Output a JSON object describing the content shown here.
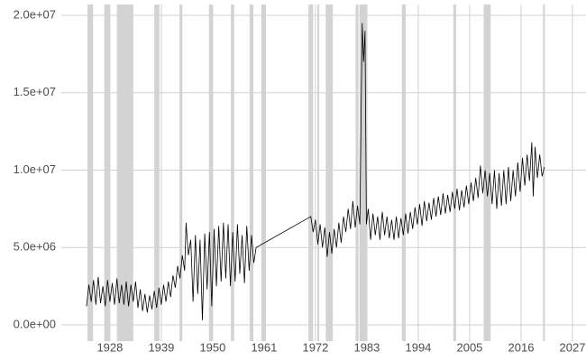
{
  "chart_data": {
    "type": "line",
    "xlim": [
      1917.6,
      2029.9
    ],
    "ylim": [
      -1050000,
      20700000
    ],
    "xticks": [
      1928,
      1939,
      1950,
      1961,
      1972,
      1983,
      1994,
      2005,
      2016,
      2027
    ],
    "yticks": [
      {
        "value": 0,
        "label": "0.0e+00"
      },
      {
        "value": 5000000,
        "label": "5.0e+06"
      },
      {
        "value": 10000000,
        "label": "1.0e+07"
      },
      {
        "value": 15000000,
        "label": "1.5e+07"
      },
      {
        "value": 20000000,
        "label": "2.0e+07"
      }
    ],
    "grid": true,
    "color": "#000000",
    "shade_color": "#d3d3d3",
    "shaded_ranges": [
      [
        1923.2,
        1924.4
      ],
      [
        1926.8,
        1927.9
      ],
      [
        1929.5,
        1933.0
      ],
      [
        1937.5,
        1938.6
      ],
      [
        1942.9,
        1943.5
      ],
      [
        1949.2,
        1950.0
      ],
      [
        1953.9,
        1954.6
      ],
      [
        1957.9,
        1958.7
      ],
      [
        1960.4,
        1961.4
      ],
      [
        1970.5,
        1971.5
      ],
      [
        1972.4,
        1972.8
      ],
      [
        1974.2,
        1975.7
      ],
      [
        1980.6,
        1981.2
      ],
      [
        1981.4,
        1983.0
      ],
      [
        1990.5,
        1991.3
      ],
      [
        2001.5,
        2002.1
      ],
      [
        2008.0,
        2009.5
      ],
      [
        2020.7,
        2021.1
      ]
    ],
    "x": [
      1923.0,
      1923.5,
      1924.0,
      1924.5,
      1925.0,
      1925.5,
      1926.0,
      1926.5,
      1927.0,
      1927.5,
      1928.0,
      1928.5,
      1929.0,
      1929.5,
      1930.0,
      1930.5,
      1931.0,
      1931.5,
      1932.0,
      1932.5,
      1933.0,
      1933.5,
      1934.0,
      1934.5,
      1935.0,
      1935.5,
      1936.0,
      1936.5,
      1937.0,
      1937.5,
      1938.0,
      1938.5,
      1939.0,
      1939.5,
      1940.0,
      1940.5,
      1941.0,
      1941.5,
      1942.0,
      1942.5,
      1943.0,
      1943.5,
      1944.0,
      1944.3,
      1944.8,
      1945.3,
      1945.8,
      1946.3,
      1946.8,
      1947.3,
      1947.8,
      1948.3,
      1948.8,
      1949.3,
      1949.8,
      1950.3,
      1950.8,
      1951.3,
      1951.8,
      1952.3,
      1952.8,
      1953.3,
      1953.8,
      1954.3,
      1954.8,
      1955.3,
      1955.8,
      1956.3,
      1956.8,
      1957.3,
      1957.8,
      1958.3,
      1958.8,
      1959.3,
      1971.0,
      1971.5,
      1972.0,
      1972.5,
      1973.0,
      1973.5,
      1974.0,
      1974.5,
      1975.0,
      1975.5,
      1976.0,
      1976.5,
      1977.0,
      1977.5,
      1978.0,
      1978.5,
      1979.0,
      1979.5,
      1980.0,
      1980.5,
      1981.0,
      1981.5,
      1981.8,
      1982.0,
      1982.3,
      1982.6,
      1982.9,
      1983.3,
      1983.8,
      1984.3,
      1984.8,
      1985.3,
      1985.8,
      1986.3,
      1986.8,
      1987.3,
      1987.8,
      1988.3,
      1988.8,
      1989.3,
      1989.8,
      1990.3,
      1990.8,
      1991.3,
      1991.8,
      1992.3,
      1992.8,
      1993.3,
      1993.8,
      1994.3,
      1994.8,
      1995.3,
      1995.8,
      1996.3,
      1996.8,
      1997.3,
      1997.8,
      1998.3,
      1998.8,
      1999.3,
      1999.8,
      2000.3,
      2000.8,
      2001.3,
      2001.8,
      2002.3,
      2002.8,
      2003.3,
      2003.8,
      2004.3,
      2004.8,
      2005.3,
      2005.8,
      2006.3,
      2006.8,
      2007.3,
      2007.8,
      2008.3,
      2008.8,
      2009.3,
      2009.8,
      2010.3,
      2010.8,
      2011.3,
      2011.8,
      2012.3,
      2012.8,
      2013.3,
      2013.8,
      2014.3,
      2014.8,
      2015.3,
      2015.8,
      2016.3,
      2016.8,
      2017.3,
      2017.8,
      2018.3,
      2018.6,
      2019.0,
      2019.5,
      2020.0,
      2020.5,
      2021.0
    ],
    "values": [
      1200000,
      2600000,
      1500000,
      2900000,
      1300000,
      3100000,
      1400000,
      2500000,
      1200000,
      2900000,
      1500000,
      2700000,
      1300000,
      3000000,
      1400000,
      2600000,
      1300000,
      2800000,
      1200000,
      2600000,
      1500000,
      2800000,
      1100000,
      2300000,
      900000,
      2000000,
      800000,
      1900000,
      1000000,
      2200000,
      1100000,
      2400000,
      1300000,
      2600000,
      1500000,
      2800000,
      1800000,
      3200000,
      2400000,
      3800000,
      3000000,
      4500000,
      3500000,
      6600000,
      4500000,
      5500000,
      1500000,
      5800000,
      2000000,
      5500000,
      300000,
      5900000,
      2300000,
      6000000,
      1200000,
      6200000,
      2500000,
      6400000,
      2800000,
      6600000,
      3000000,
      6500000,
      2500000,
      6000000,
      2800000,
      6500000,
      3300000,
      5800000,
      2700000,
      6400000,
      3500000,
      5800000,
      4000000,
      5000000,
      7000000,
      6000000,
      6800000,
      5200000,
      6500000,
      5000000,
      6300000,
      4400000,
      6000000,
      4600000,
      6200000,
      5000000,
      6600000,
      5300000,
      7000000,
      6000000,
      7500000,
      6200000,
      8000000,
      6300000,
      7700000,
      6500000,
      14500000,
      19500000,
      17000000,
      19000000,
      6500000,
      7500000,
      5500000,
      7200000,
      5800000,
      7000000,
      5500000,
      7300000,
      5800000,
      7000000,
      5600000,
      6800000,
      5500000,
      7000000,
      5600000,
      6900000,
      5800000,
      7200000,
      5900000,
      7300000,
      6200000,
      7600000,
      6500000,
      7800000,
      6400000,
      8000000,
      6700000,
      7900000,
      6800000,
      8200000,
      7000000,
      8300000,
      7100000,
      8500000,
      7200000,
      8400000,
      7300000,
      8600000,
      7500000,
      8800000,
      7400000,
      8700000,
      7600000,
      9000000,
      7800000,
      9200000,
      8000000,
      9500000,
      8200000,
      10300000,
      8500000,
      10000000,
      8300000,
      9800000,
      7800000,
      10000000,
      7500000,
      9800000,
      7700000,
      10000000,
      7800000,
      10200000,
      8000000,
      10000000,
      8300000,
      10500000,
      8600000,
      10800000,
      9000000,
      11000000,
      9300000,
      11800000,
      8300000,
      11500000,
      9500000,
      11000000,
      9600000,
      10200000
    ]
  }
}
